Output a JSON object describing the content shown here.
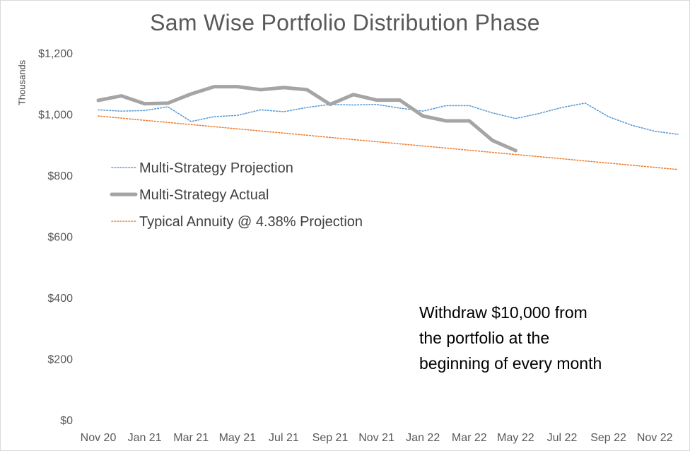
{
  "chart_data": {
    "type": "line",
    "title": "Sam Wise Portfolio Distribution Phase",
    "ylabel": "Thousands",
    "xlabel": "",
    "ylim": [
      0,
      1200
    ],
    "yticks": [
      0,
      200,
      400,
      600,
      800,
      1000,
      1200
    ],
    "ytick_labels": [
      "$0",
      "$200",
      "$400",
      "$600",
      "$800",
      "$1,000",
      "$1,200"
    ],
    "x_tick_labels": [
      "Nov 20",
      "Jan 21",
      "Mar 21",
      "May 21",
      "Jul 21",
      "Sep 21",
      "Nov 21",
      "Jan 22",
      "Mar 22",
      "May 22",
      "Jul 22",
      "Sep 22",
      "Nov 22"
    ],
    "months": [
      "Nov 20",
      "Dec 20",
      "Jan 21",
      "Feb 21",
      "Mar 21",
      "Apr 21",
      "May 21",
      "Jun 21",
      "Jul 21",
      "Aug 21",
      "Sep 21",
      "Oct 21",
      "Nov 21",
      "Dec 21",
      "Jan 22",
      "Feb 22",
      "Mar 22",
      "Apr 22",
      "May 22",
      "Jun 22",
      "Jul 22",
      "Aug 22",
      "Sep 22",
      "Oct 22",
      "Nov 22",
      "Dec 22"
    ],
    "grid": false,
    "legend_position": "left",
    "series": [
      {
        "name": "Multi-Strategy Projection",
        "style": "dotted",
        "color": "#5b9bd5",
        "values": [
          1014,
          1010,
          1012,
          1024,
          976,
          992,
          996,
          1014,
          1008,
          1022,
          1032,
          1030,
          1032,
          1020,
          1010,
          1028,
          1028,
          1004,
          986,
          1002,
          1022,
          1036,
          992,
          964,
          944,
          934
        ]
      },
      {
        "name": "Multi-Strategy Actual",
        "style": "solid",
        "color": "#a5a5a5",
        "values": [
          1045,
          1060,
          1034,
          1036,
          1066,
          1090,
          1090,
          1080,
          1087,
          1080,
          1032,
          1064,
          1046,
          1046,
          994,
          978,
          978,
          914,
          881
        ]
      },
      {
        "name": "Typical Annuity @ 4.38% Projection",
        "style": "dotted",
        "color": "#ed7d31",
        "values": [
          994,
          987,
          980,
          973,
          966,
          959,
          952,
          945,
          938,
          931,
          924,
          917,
          910,
          903,
          896,
          889,
          882,
          875,
          868,
          861,
          854,
          847,
          840,
          833,
          826,
          819
        ]
      }
    ]
  },
  "annotation": {
    "lines": [
      "Withdraw $10,000 from",
      "the portfolio at the",
      "beginning of every month"
    ]
  }
}
